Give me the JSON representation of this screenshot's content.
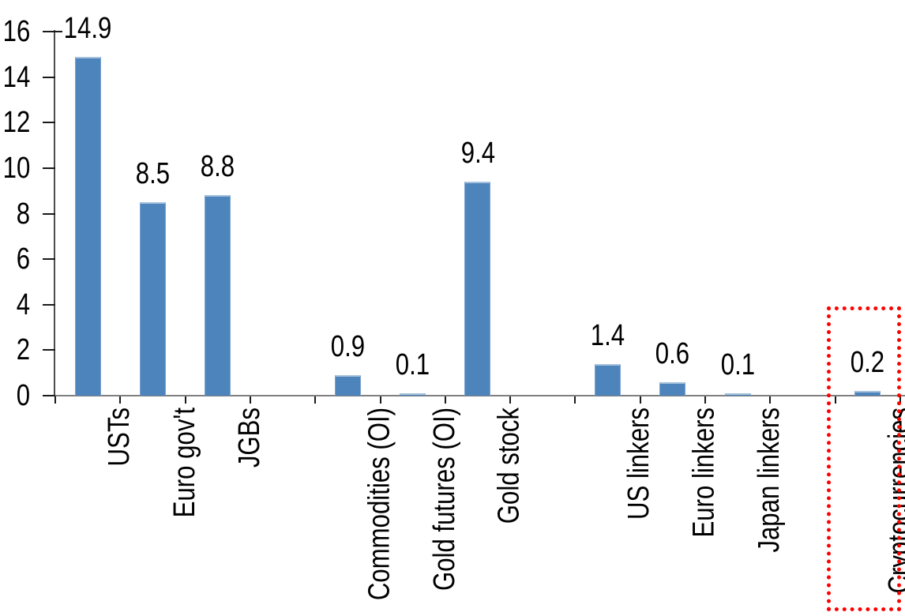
{
  "chart_data": {
    "type": "bar",
    "title": "",
    "xlabel": "",
    "ylabel": "",
    "bars": [
      {
        "label": "USTs",
        "value": 14.9,
        "value_label": "14.9",
        "slot": 0,
        "highlighted": false
      },
      {
        "label": "Euro gov't",
        "value": 8.5,
        "value_label": "8.5",
        "slot": 1,
        "highlighted": false
      },
      {
        "label": "JGBs",
        "value": 8.8,
        "value_label": "8.8",
        "slot": 2,
        "highlighted": false
      },
      {
        "label": "Commodities (OI)",
        "value": 0.9,
        "value_label": "0.9",
        "slot": 4,
        "highlighted": false
      },
      {
        "label": "Gold futures (OI)",
        "value": 0.1,
        "value_label": "0.1",
        "slot": 5,
        "highlighted": false
      },
      {
        "label": "Gold stock",
        "value": 9.4,
        "value_label": "9.4",
        "slot": 6,
        "highlighted": false
      },
      {
        "label": "US linkers",
        "value": 1.4,
        "value_label": "1.4",
        "slot": 8,
        "highlighted": false
      },
      {
        "label": "Euro linkers",
        "value": 0.6,
        "value_label": "0.6",
        "slot": 9,
        "highlighted": false
      },
      {
        "label": "Japan linkers",
        "value": 0.1,
        "value_label": "0.1",
        "slot": 10,
        "highlighted": false
      },
      {
        "label": "Cryptocurrencies",
        "value": 0.2,
        "value_label": "0.2",
        "slot": 12,
        "highlighted": true
      }
    ],
    "total_slots": 13,
    "y_axis": {
      "min": 0,
      "max": 16,
      "tick_step": 2,
      "ticks": [
        0,
        2,
        4,
        6,
        8,
        10,
        12,
        14,
        16
      ]
    },
    "data_labels_shown": true,
    "grid": false,
    "legend": false,
    "colors": {
      "bar_fill": "#4e84bc",
      "bar_edge": "#a6c2dd",
      "axis": "#4d4d4d",
      "tick": "#1a1a1a",
      "text": "#000000",
      "highlight_box": "#ff0000"
    }
  }
}
